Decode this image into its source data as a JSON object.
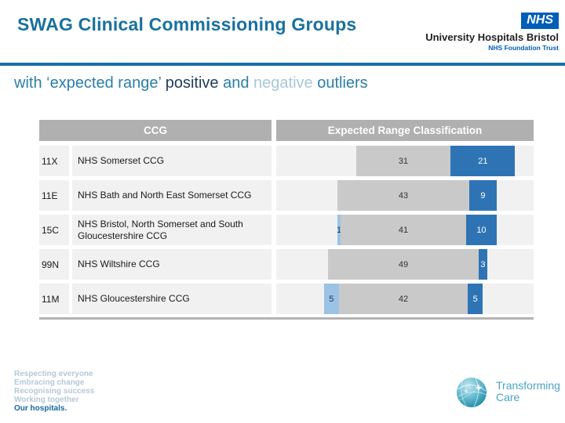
{
  "slide": {
    "title": "SWAG Clinical Commissioning Groups",
    "subtitle": {
      "part1": "with ‘expected range’ ",
      "part2": "positive",
      "part3": " and ",
      "part4": "negative",
      "part5": " outliers"
    }
  },
  "branding": {
    "nhs_logo": "NHS",
    "org_name": "University Hospitals Bristol",
    "org_subtitle": "NHS Foundation Trust",
    "nhs_blue": "#005EB8"
  },
  "table": {
    "header": {
      "ccg": "CCG",
      "classification": "Expected Range Classification"
    },
    "rows": [
      {
        "code": "11X",
        "name": "NHS Somerset CCG",
        "negative": 0,
        "within": 31,
        "positive": 21
      },
      {
        "code": "11E",
        "name": "NHS Bath and North East Somerset CCG",
        "negative": 0,
        "within": 43,
        "positive": 9
      },
      {
        "code": "15C",
        "name": "NHS Bristol, North Somerset and South Gloucestershire CCG",
        "negative": 1,
        "within": 41,
        "positive": 10
      },
      {
        "code": "99N",
        "name": "NHS Wiltshire CCG",
        "negative": 0,
        "within": 49,
        "positive": 3
      },
      {
        "code": "11M",
        "name": "NHS Gloucestershire CCG",
        "negative": 5,
        "within": 42,
        "positive": 5
      }
    ]
  },
  "chart_data": {
    "type": "bar",
    "stacked": true,
    "orientation": "horizontal",
    "alignment": "center-on-within-segment",
    "title": "Expected Range Classification",
    "categories": [
      "NHS Somerset CCG",
      "NHS Bath and North East Somerset CCG",
      "NHS Bristol, North Somerset and South Gloucestershire CCG",
      "NHS Wiltshire CCG",
      "NHS Gloucestershire CCG"
    ],
    "category_codes": [
      "11X",
      "11E",
      "15C",
      "99N",
      "11M"
    ],
    "series": [
      {
        "name": "negative outliers",
        "color": "#9cc2e5",
        "values": [
          0,
          0,
          1,
          0,
          5
        ]
      },
      {
        "name": "within expected range",
        "color": "#c9c9c9",
        "values": [
          31,
          43,
          41,
          49,
          42
        ]
      },
      {
        "name": "positive outliers",
        "color": "#2e74b5",
        "values": [
          21,
          9,
          10,
          3,
          5
        ]
      }
    ],
    "data_labels": true,
    "legend": "none",
    "axes": "none"
  },
  "footer": {
    "values": [
      "Respecting everyone",
      "Embracing change",
      "Recognising success",
      "Working together"
    ],
    "tagline": "Our hospitals.",
    "logo_text": "Transforming Care"
  },
  "colors": {
    "title": "#19719f",
    "rule": "#1b6fa5",
    "header_gray": "#b0b0b0",
    "row_band": "#f1f1f1",
    "bar_within": "#c9c9c9",
    "bar_positive": "#2e74b5",
    "bar_negative": "#9cc2e5"
  }
}
